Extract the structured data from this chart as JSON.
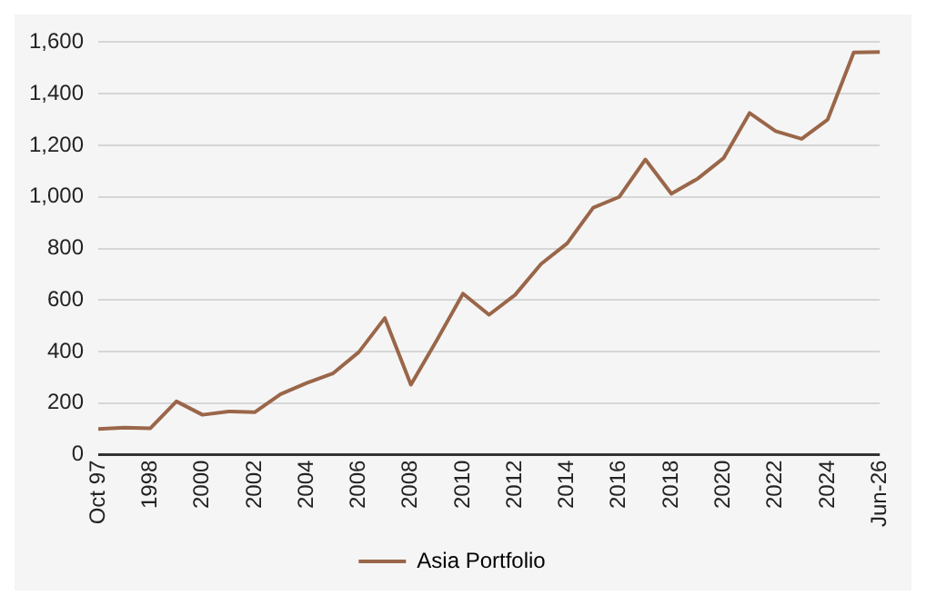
{
  "chart_data": {
    "type": "line",
    "categories": [
      "Oct 97",
      null,
      "1998",
      null,
      "2000",
      null,
      "2002",
      null,
      "2004",
      null,
      "2006",
      null,
      "2008",
      null,
      "2010",
      null,
      "2012",
      null,
      "2014",
      null,
      "2016",
      null,
      "2018",
      null,
      "2020",
      null,
      "2022",
      null,
      "2024",
      null,
      "Jun-26"
    ],
    "series": [
      {
        "name": "Asia Portfolio",
        "color": "#9a6649",
        "values": [
          100,
          105,
          103,
          207,
          155,
          168,
          165,
          235,
          278,
          315,
          398,
          530,
          272,
          445,
          625,
          543,
          620,
          740,
          820,
          958,
          1000,
          1145,
          1012,
          1070,
          1150,
          1325,
          1255,
          1225,
          1300,
          1560,
          1562
        ]
      }
    ],
    "ylim": [
      0,
      1600
    ],
    "yticks": [
      0,
      200,
      400,
      600,
      800,
      {
        "value": 1000,
        "label": "1,000"
      },
      {
        "value": 1200,
        "label": "1,200"
      },
      {
        "value": 1400,
        "label": "1,400"
      },
      {
        "value": 1600,
        "label": "1,600"
      }
    ],
    "grid": "y",
    "legend": "bottom",
    "marker": "none",
    "line_style": "solid"
  }
}
